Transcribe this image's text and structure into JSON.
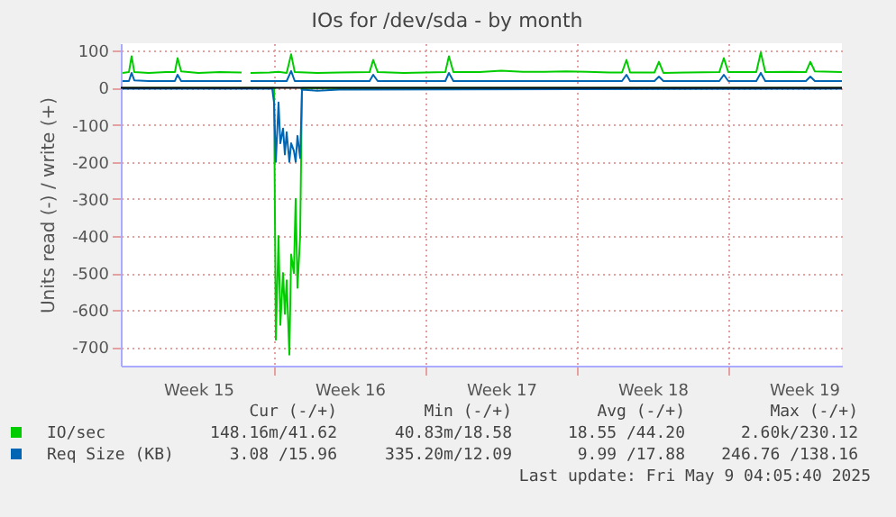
{
  "chart_data": {
    "type": "line",
    "title": "IOs for /dev/sda - by month",
    "ylabel": "Units read (-) / write (+)",
    "xlim": [
      "2025-04-06T22:00",
      "2025-05-10T06:00"
    ],
    "ylim": [
      -750,
      120
    ],
    "xticks": [
      {
        "value": "2025-04-10T12:00",
        "label": "Week 15"
      },
      {
        "value": "2025-04-14",
        "label": null
      },
      {
        "value": "2025-04-17T12:00",
        "label": "Week 16"
      },
      {
        "value": "2025-04-21",
        "label": null
      },
      {
        "value": "2025-04-24T12:00",
        "label": "Week 17"
      },
      {
        "value": "2025-04-28",
        "label": null
      },
      {
        "value": "2025-05-01T12:00",
        "label": "Week 18"
      },
      {
        "value": "2025-05-05",
        "label": null
      },
      {
        "value": "2025-05-08T12:00",
        "label": "Week 19"
      }
    ],
    "yticks": [
      -700,
      -600,
      -500,
      -400,
      -300,
      -200,
      -100,
      0,
      100
    ],
    "grid": true,
    "legend": "bottom",
    "ref_lines": [
      {
        "axis": "y",
        "value": 0,
        "color": "#000000"
      }
    ],
    "series": [
      {
        "name": "IO/sec",
        "color": "#00cc00",
        "x": [
          "2025-04-07T00:00",
          "2025-04-07T07:00",
          "2025-04-07T10:00",
          "2025-04-07T13:00",
          "2025-04-08T05:00",
          "2025-04-09T00:00",
          "2025-04-09T10:00",
          "2025-04-09T13:00",
          "2025-04-09T17:00",
          "2025-04-10T12:00",
          "2025-04-11T12:00",
          "2025-04-12T12:00",
          "2025-04-12T18:00",
          "2025-04-12T22:00",
          "2025-04-13T19:00",
          "2025-04-14T05:00",
          "2025-04-14T14:00",
          "2025-04-14T19:00",
          "2025-04-14T23:00",
          "2025-04-16T00:00",
          "2025-04-17T00:00",
          "2025-04-18T10:00",
          "2025-04-18T14:00",
          "2025-04-18T19:00",
          "2025-04-20T00:00",
          "2025-04-21T22:00",
          "2025-04-22T02:00",
          "2025-04-22T07:00",
          "2025-04-23T12:00",
          "2025-04-24T12:00",
          "2025-04-25T12:00",
          "2025-04-26T12:00",
          "2025-04-27T12:00",
          "2025-04-28T12:00",
          "2025-04-29T12:00",
          "2025-04-30T02:00",
          "2025-04-30T07:00",
          "2025-04-30T11:00",
          "2025-05-01T14:00",
          "2025-05-01T19:00",
          "2025-05-02T00:00",
          "2025-05-03T00:00",
          "2025-05-04T14:00",
          "2025-05-04T19:00",
          "2025-05-05T00:00",
          "2025-05-06T07:00",
          "2025-05-06T12:00",
          "2025-05-06T17:00",
          "2025-05-07T19:00",
          "2025-05-08T14:00",
          "2025-05-08T19:00",
          "2025-05-09T00:00",
          "2025-05-10T06:00"
        ],
        "values": [
          40,
          42,
          85,
          42,
          40,
          42,
          42,
          80,
          44,
          40,
          42,
          41,
          null,
          40,
          41,
          43,
          40,
          90,
          42,
          40,
          41,
          42,
          75,
          42,
          40,
          42,
          85,
          42,
          42,
          46,
          43,
          43,
          44,
          43,
          41,
          41,
          75,
          41,
          41,
          70,
          40,
          41,
          42,
          80,
          42,
          42,
          95,
          42,
          43,
          42,
          70,
          44,
          42
        ]
      },
      {
        "color": "#00cc00",
        "x": [
          "2025-04-07T00:00",
          "2025-04-14T00:00",
          "2025-04-14T02:00",
          "2025-04-14T05:00",
          "2025-04-14T07:00",
          "2025-04-14T10:00",
          "2025-04-14T12:00",
          "2025-04-14T14:00",
          "2025-04-14T17:00",
          "2025-04-14T19:00",
          "2025-04-14T22:00",
          "2025-04-15T00:00",
          "2025-04-15T02:00",
          "2025-04-15T05:00",
          "2025-04-15T07:00",
          "2025-05-10T06:00"
        ],
        "values": [
          -1,
          -1,
          -680,
          -400,
          -640,
          -500,
          -610,
          -520,
          -720,
          -450,
          -500,
          -300,
          -540,
          -400,
          -1,
          -1
        ]
      },
      {
        "name": "Req Size (KB)",
        "color": "#0066b3",
        "x": [
          "2025-04-07T00:00",
          "2025-04-07T07:00",
          "2025-04-07T10:00",
          "2025-04-07T13:00",
          "2025-04-08T05:00",
          "2025-04-09T00:00",
          "2025-04-09T10:00",
          "2025-04-09T13:00",
          "2025-04-09T17:00",
          "2025-04-10T12:00",
          "2025-04-11T12:00",
          "2025-04-12T12:00",
          "2025-04-12T18:00",
          "2025-04-12T22:00",
          "2025-04-13T19:00",
          "2025-04-14T05:00",
          "2025-04-14T14:00",
          "2025-04-14T19:00",
          "2025-04-14T23:00",
          "2025-04-16T00:00",
          "2025-04-17T00:00",
          "2025-04-18T10:00",
          "2025-04-18T14:00",
          "2025-04-18T19:00",
          "2025-04-20T00:00",
          "2025-04-21T22:00",
          "2025-04-22T02:00",
          "2025-04-22T07:00",
          "2025-04-23T12:00",
          "2025-04-24T12:00",
          "2025-04-25T12:00",
          "2025-04-26T12:00",
          "2025-04-27T12:00",
          "2025-04-28T12:00",
          "2025-04-29T12:00",
          "2025-04-30T02:00",
          "2025-04-30T07:00",
          "2025-04-30T11:00",
          "2025-05-01T14:00",
          "2025-05-01T19:00",
          "2025-05-02T00:00",
          "2025-05-03T00:00",
          "2025-05-04T14:00",
          "2025-05-04T19:00",
          "2025-05-05T00:00",
          "2025-05-06T07:00",
          "2025-05-06T12:00",
          "2025-05-06T17:00",
          "2025-05-07T19:00",
          "2025-05-08T14:00",
          "2025-05-08T19:00",
          "2025-05-09T00:00",
          "2025-05-10T06:00"
        ],
        "values": [
          18,
          18,
          40,
          20,
          18,
          18,
          18,
          35,
          18,
          18,
          18,
          18,
          null,
          18,
          18,
          18,
          18,
          45,
          18,
          18,
          18,
          18,
          35,
          18,
          18,
          18,
          40,
          18,
          18,
          18,
          18,
          18,
          18,
          18,
          18,
          18,
          35,
          18,
          18,
          30,
          18,
          18,
          18,
          35,
          18,
          18,
          40,
          18,
          18,
          18,
          30,
          18,
          18
        ]
      },
      {
        "color": "#0066b3",
        "x": [
          "2025-04-07T00:00",
          "2025-04-13T22:00",
          "2025-04-14T00:00",
          "2025-04-14T02:00",
          "2025-04-14T05:00",
          "2025-04-14T07:00",
          "2025-04-14T10:00",
          "2025-04-14T12:00",
          "2025-04-14T14:00",
          "2025-04-14T17:00",
          "2025-04-14T19:00",
          "2025-04-14T22:00",
          "2025-04-15T00:00",
          "2025-04-15T02:00",
          "2025-04-15T05:00",
          "2025-04-15T07:00",
          "2025-04-16T00:00",
          "2025-04-17T00:00",
          "2025-05-10T06:00"
        ],
        "values": [
          -3,
          -3,
          -40,
          -200,
          -40,
          -150,
          -110,
          -180,
          -120,
          -200,
          -150,
          -170,
          -200,
          -130,
          -190,
          -5,
          -8,
          -5,
          -3
        ]
      }
    ],
    "annotations": [
      "Cur (-/+)",
      "Min (-/+)",
      "Avg (-/+)",
      "Max (-/+)",
      "148.16m/41.62",
      "40.83m/18.58",
      "18.55 /44.20",
      "2.60k/230.12",
      "3.08 /15.96",
      "335.20m/12.09",
      "9.99 /17.88",
      "246.76 /138.16",
      "Last update: Fri May  9 04:05:40 2025"
    ]
  }
}
